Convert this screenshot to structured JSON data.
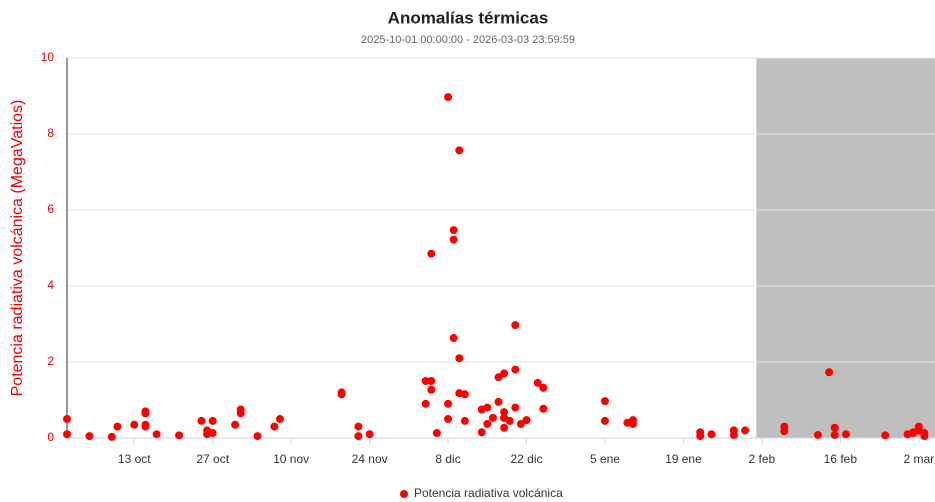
{
  "chart_data": {
    "type": "scatter",
    "title": "Anomalías térmicas",
    "subtitle": "2025-10-01 00:00:00 - 2026-03-03 23:59:59",
    "y_label": "Potencia radiativa volcánica (MegaVatios)",
    "xlim": [
      "2025-10-01",
      "2026-03-04"
    ],
    "ylim": [
      0,
      10
    ],
    "yticks": [
      0,
      2,
      4,
      6,
      8,
      10
    ],
    "xticks": [
      {
        "value": "2025-10-13",
        "label": "13 oct"
      },
      {
        "value": "2025-10-27",
        "label": "27 oct"
      },
      {
        "value": "2025-11-10",
        "label": "10 nov"
      },
      {
        "value": "2025-11-24",
        "label": "24 nov"
      },
      {
        "value": "2025-12-08",
        "label": "8 dic"
      },
      {
        "value": "2025-12-22",
        "label": "22 dic"
      },
      {
        "value": "2026-01-05",
        "label": "5 ene"
      },
      {
        "value": "2026-01-19",
        "label": "19 ene"
      },
      {
        "value": "2026-02-02",
        "label": "2 feb"
      },
      {
        "value": "2026-02-16",
        "label": "16 feb"
      },
      {
        "value": "2026-03-02",
        "label": "2 mar"
      }
    ],
    "grid": true,
    "shaded_region": {
      "from": "2026-02-01",
      "to": "2026-03-04",
      "color": "#bfbfbf"
    },
    "legend_position": "bottom",
    "x": [
      "2025-10-01",
      "2025-10-01",
      "2025-10-05",
      "2025-10-09",
      "2025-10-10",
      "2025-10-13",
      "2025-10-15",
      "2025-10-15",
      "2025-10-15",
      "2025-10-15",
      "2025-10-17",
      "2025-10-21",
      "2025-10-25",
      "2025-10-26",
      "2025-10-26",
      "2025-10-27",
      "2025-10-27",
      "2025-10-31",
      "2025-11-01",
      "2025-11-01",
      "2025-11-04",
      "2025-11-07",
      "2025-11-08",
      "2025-11-19",
      "2025-11-19",
      "2025-11-22",
      "2025-11-22",
      "2025-11-24",
      "2025-12-04",
      "2025-12-04",
      "2025-12-05",
      "2025-12-05",
      "2025-12-05",
      "2025-12-06",
      "2025-12-08",
      "2025-12-08",
      "2025-12-08",
      "2025-12-09",
      "2025-12-09",
      "2025-12-10",
      "2025-12-09",
      "2025-12-10",
      "2025-12-10",
      "2025-12-11",
      "2025-12-11",
      "2025-12-14",
      "2025-12-14",
      "2025-12-15",
      "2025-12-15",
      "2025-12-16",
      "2025-12-17",
      "2025-12-17",
      "2025-12-18",
      "2025-12-18",
      "2025-12-18",
      "2025-12-18",
      "2025-12-19",
      "2025-12-20",
      "2025-12-20",
      "2025-12-20",
      "2025-12-21",
      "2025-12-22",
      "2025-12-24",
      "2025-12-25",
      "2025-12-25",
      "2026-01-05",
      "2026-01-05",
      "2026-01-09",
      "2026-01-10",
      "2026-01-10",
      "2026-01-22",
      "2026-01-22",
      "2026-01-24",
      "2026-01-28",
      "2026-01-28",
      "2026-01-30",
      "2026-02-06",
      "2026-02-06",
      "2026-02-12",
      "2026-02-14",
      "2026-02-15",
      "2026-02-15",
      "2026-02-17",
      "2026-02-24",
      "2026-02-28",
      "2026-03-01",
      "2026-03-01",
      "2026-03-02",
      "2026-03-02",
      "2026-03-03",
      "2026-03-03"
    ],
    "series": [
      {
        "name": "Potencia radiativa volcánica",
        "color": "#ff0000",
        "values": [
          0.5,
          0.1,
          0.05,
          0.03,
          0.3,
          0.35,
          0.65,
          0.7,
          0.35,
          0.3,
          0.1,
          0.07,
          0.45,
          0.2,
          0.1,
          0.45,
          0.13,
          0.35,
          0.75,
          0.65,
          0.05,
          0.3,
          0.5,
          1.2,
          1.15,
          0.3,
          0.05,
          0.1,
          0.9,
          1.5,
          1.5,
          1.27,
          4.85,
          0.13,
          8.97,
          0.9,
          0.5,
          5.22,
          5.47,
          7.57,
          2.63,
          2.1,
          1.18,
          1.15,
          0.45,
          0.15,
          0.75,
          0.8,
          0.37,
          0.53,
          1.6,
          0.95,
          1.7,
          0.68,
          0.53,
          0.27,
          0.45,
          2.97,
          1.8,
          0.8,
          0.37,
          0.47,
          1.45,
          1.32,
          0.77,
          0.97,
          0.45,
          0.4,
          0.47,
          0.37,
          0.15,
          0.05,
          0.1,
          0.2,
          0.08,
          0.2,
          0.3,
          0.18,
          0.08,
          1.73,
          0.27,
          0.08,
          0.1,
          0.07,
          0.1,
          0.13,
          0.15,
          0.3,
          0.2,
          0.13,
          0.05
        ]
      }
    ]
  }
}
